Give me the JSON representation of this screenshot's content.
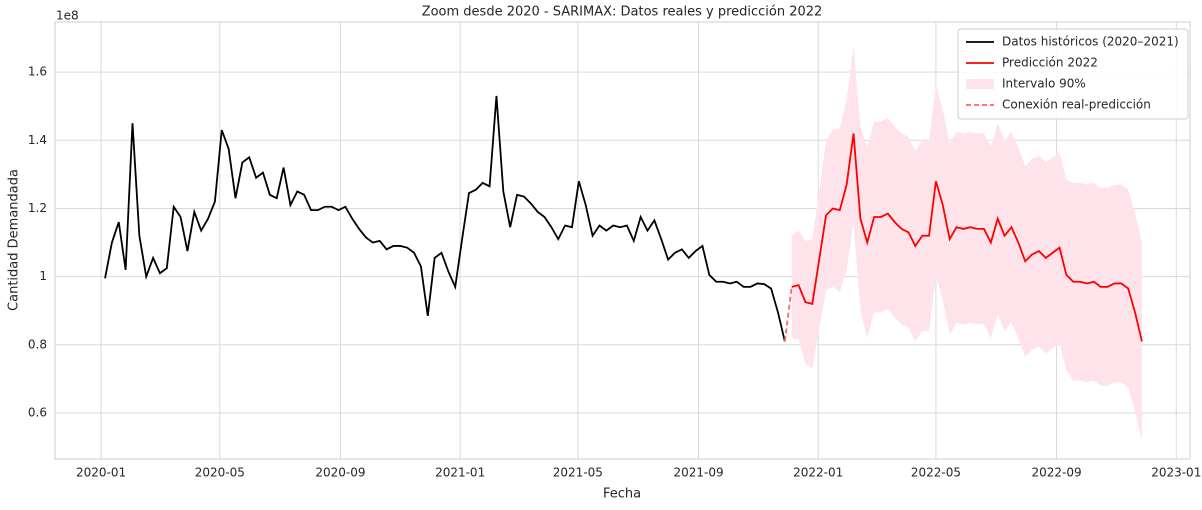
{
  "chart_data": {
    "type": "line",
    "title": "Zoom desde 2020 - SARIMAX: Datos reales y predicción 2022",
    "x_label": "Fecha",
    "y_label": "Cantidad Demandada",
    "y_offset_label": "1e8",
    "xlim": [
      "2019-11-15",
      "2023-01-15"
    ],
    "xticks": [
      {
        "value": "2020-01-01",
        "label": "2020-01"
      },
      {
        "value": "2020-05-01",
        "label": "2020-05"
      },
      {
        "value": "2020-09-01",
        "label": "2020-09"
      },
      {
        "value": "2021-01-01",
        "label": "2021-01"
      },
      {
        "value": "2021-05-01",
        "label": "2021-05"
      },
      {
        "value": "2021-09-01",
        "label": "2021-09"
      },
      {
        "value": "2022-01-01",
        "label": "2022-01"
      },
      {
        "value": "2022-05-01",
        "label": "2022-05"
      },
      {
        "value": "2022-09-01",
        "label": "2022-09"
      },
      {
        "value": "2023-01-01",
        "label": "2023-01"
      }
    ],
    "ylim": [
      0.465,
      1.747
    ],
    "yticks": [
      0.6,
      0.8,
      1.0,
      1.2,
      1.4,
      1.6
    ],
    "grid": true,
    "legend": "upper right",
    "series": [
      {
        "name": "Datos históricos (2020–2021)",
        "color": "#000000",
        "kind": "line",
        "x": [
          "2020-01-05",
          "2020-01-12",
          "2020-01-19",
          "2020-01-26",
          "2020-02-02",
          "2020-02-09",
          "2020-02-16",
          "2020-02-23",
          "2020-03-01",
          "2020-03-08",
          "2020-03-15",
          "2020-03-22",
          "2020-03-29",
          "2020-04-05",
          "2020-04-12",
          "2020-04-19",
          "2020-04-26",
          "2020-05-03",
          "2020-05-10",
          "2020-05-17",
          "2020-05-24",
          "2020-05-31",
          "2020-06-07",
          "2020-06-14",
          "2020-06-21",
          "2020-06-28",
          "2020-07-05",
          "2020-07-12",
          "2020-07-19",
          "2020-07-26",
          "2020-08-02",
          "2020-08-09",
          "2020-08-16",
          "2020-08-23",
          "2020-08-30",
          "2020-09-06",
          "2020-09-13",
          "2020-09-20",
          "2020-09-27",
          "2020-10-04",
          "2020-10-11",
          "2020-10-18",
          "2020-10-25",
          "2020-11-01",
          "2020-11-08",
          "2020-11-15",
          "2020-11-22",
          "2020-11-29",
          "2020-12-06",
          "2020-12-13",
          "2020-12-20",
          "2020-12-27",
          "2021-01-03",
          "2021-01-10",
          "2021-01-17",
          "2021-01-24",
          "2021-01-31",
          "2021-02-07",
          "2021-02-14",
          "2021-02-21",
          "2021-02-28",
          "2021-03-07",
          "2021-03-14",
          "2021-03-21",
          "2021-03-28",
          "2021-04-04",
          "2021-04-11",
          "2021-04-18",
          "2021-04-25",
          "2021-05-02",
          "2021-05-09",
          "2021-05-16",
          "2021-05-23",
          "2021-05-30",
          "2021-06-06",
          "2021-06-13",
          "2021-06-20",
          "2021-06-27",
          "2021-07-04",
          "2021-07-11",
          "2021-07-18",
          "2021-07-25",
          "2021-08-01",
          "2021-08-08",
          "2021-08-15",
          "2021-08-22",
          "2021-08-29",
          "2021-09-05",
          "2021-09-12",
          "2021-09-19",
          "2021-09-26",
          "2021-10-03",
          "2021-10-10",
          "2021-10-17",
          "2021-10-24",
          "2021-10-31",
          "2021-11-07",
          "2021-11-14",
          "2021-11-21",
          "2021-11-28"
        ],
        "values": [
          0.995,
          1.1,
          1.16,
          1.02,
          1.45,
          1.12,
          1.0,
          1.055,
          1.01,
          1.025,
          1.205,
          1.175,
          1.075,
          1.19,
          1.135,
          1.17,
          1.22,
          1.43,
          1.375,
          1.23,
          1.335,
          1.35,
          1.29,
          1.305,
          1.24,
          1.23,
          1.32,
          1.21,
          1.25,
          1.24,
          1.195,
          1.195,
          1.205,
          1.205,
          1.195,
          1.205,
          1.17,
          1.14,
          1.115,
          1.1,
          1.105,
          1.08,
          1.09,
          1.09,
          1.085,
          1.07,
          1.03,
          0.885,
          1.055,
          1.07,
          1.015,
          0.97,
          1.11,
          1.245,
          1.255,
          1.275,
          1.265,
          1.53,
          1.25,
          1.145,
          1.24,
          1.235,
          1.215,
          1.19,
          1.175,
          1.145,
          1.11,
          1.15,
          1.145,
          1.28,
          1.21,
          1.12,
          1.15,
          1.135,
          1.15,
          1.145,
          1.15,
          1.105,
          1.175,
          1.135,
          1.165,
          1.11,
          1.05,
          1.07,
          1.08,
          1.055,
          1.075,
          1.09,
          1.005,
          0.985,
          0.985,
          0.98,
          0.985,
          0.97,
          0.97,
          0.98,
          0.978,
          0.965,
          0.895,
          0.81
        ]
      },
      {
        "name": "Predicción 2022",
        "color": "#ff0000",
        "kind": "line",
        "x": [
          "2021-12-05",
          "2021-12-12",
          "2021-12-19",
          "2021-12-26",
          "2022-01-02",
          "2022-01-09",
          "2022-01-16",
          "2022-01-23",
          "2022-01-30",
          "2022-02-06",
          "2022-02-13",
          "2022-02-20",
          "2022-02-27",
          "2022-03-06",
          "2022-03-13",
          "2022-03-20",
          "2022-03-27",
          "2022-04-03",
          "2022-04-10",
          "2022-04-17",
          "2022-04-24",
          "2022-05-01",
          "2022-05-08",
          "2022-05-15",
          "2022-05-22",
          "2022-05-29",
          "2022-06-05",
          "2022-06-12",
          "2022-06-19",
          "2022-06-26",
          "2022-07-03",
          "2022-07-10",
          "2022-07-17",
          "2022-07-24",
          "2022-07-31",
          "2022-08-07",
          "2022-08-14",
          "2022-08-21",
          "2022-08-28",
          "2022-09-04",
          "2022-09-11",
          "2022-09-18",
          "2022-09-25",
          "2022-10-02",
          "2022-10-09",
          "2022-10-16",
          "2022-10-23",
          "2022-10-30",
          "2022-11-06",
          "2022-11-13",
          "2022-11-20",
          "2022-11-27"
        ],
        "values": [
          0.97,
          0.975,
          0.925,
          0.92,
          1.05,
          1.18,
          1.2,
          1.195,
          1.27,
          1.42,
          1.17,
          1.1,
          1.175,
          1.175,
          1.185,
          1.16,
          1.14,
          1.13,
          1.09,
          1.12,
          1.12,
          1.28,
          1.21,
          1.11,
          1.145,
          1.14,
          1.145,
          1.14,
          1.14,
          1.1,
          1.17,
          1.12,
          1.145,
          1.1,
          1.045,
          1.065,
          1.075,
          1.055,
          1.07,
          1.085,
          1.005,
          0.985,
          0.985,
          0.98,
          0.985,
          0.97,
          0.97,
          0.98,
          0.98,
          0.965,
          0.895,
          0.81
        ]
      },
      {
        "name": "Intervalo 90%",
        "color": "#ffe3ea",
        "kind": "band",
        "x": [
          "2021-12-05",
          "2021-12-12",
          "2021-12-19",
          "2021-12-26",
          "2022-01-02",
          "2022-01-09",
          "2022-01-16",
          "2022-01-23",
          "2022-01-30",
          "2022-02-06",
          "2022-02-13",
          "2022-02-20",
          "2022-02-27",
          "2022-03-06",
          "2022-03-13",
          "2022-03-20",
          "2022-03-27",
          "2022-04-03",
          "2022-04-10",
          "2022-04-17",
          "2022-04-24",
          "2022-05-01",
          "2022-05-08",
          "2022-05-15",
          "2022-05-22",
          "2022-05-29",
          "2022-06-05",
          "2022-06-12",
          "2022-06-19",
          "2022-06-26",
          "2022-07-03",
          "2022-07-10",
          "2022-07-17",
          "2022-07-24",
          "2022-07-31",
          "2022-08-07",
          "2022-08-14",
          "2022-08-21",
          "2022-08-28",
          "2022-09-04",
          "2022-09-11",
          "2022-09-18",
          "2022-09-25",
          "2022-10-02",
          "2022-10-09",
          "2022-10-16",
          "2022-10-23",
          "2022-10-30",
          "2022-11-06",
          "2022-11-13",
          "2022-11-20",
          "2022-11-27"
        ],
        "lower": [
          0.82,
          0.815,
          0.745,
          0.73,
          0.85,
          0.96,
          0.97,
          0.955,
          1.02,
          1.16,
          0.9,
          0.82,
          0.895,
          0.895,
          0.905,
          0.88,
          0.86,
          0.85,
          0.81,
          0.84,
          0.84,
          1.0,
          0.93,
          0.83,
          0.865,
          0.86,
          0.865,
          0.86,
          0.86,
          0.82,
          0.89,
          0.84,
          0.865,
          0.82,
          0.765,
          0.785,
          0.795,
          0.775,
          0.79,
          0.805,
          0.725,
          0.695,
          0.695,
          0.69,
          0.695,
          0.68,
          0.68,
          0.69,
          0.69,
          0.675,
          0.605,
          0.52
        ],
        "upper": [
          1.12,
          1.135,
          1.105,
          1.11,
          1.25,
          1.4,
          1.43,
          1.435,
          1.52,
          1.68,
          1.44,
          1.38,
          1.455,
          1.455,
          1.465,
          1.44,
          1.42,
          1.41,
          1.37,
          1.4,
          1.4,
          1.56,
          1.49,
          1.39,
          1.425,
          1.42,
          1.425,
          1.42,
          1.42,
          1.38,
          1.45,
          1.4,
          1.425,
          1.38,
          1.325,
          1.345,
          1.355,
          1.335,
          1.35,
          1.365,
          1.285,
          1.275,
          1.275,
          1.27,
          1.275,
          1.26,
          1.26,
          1.27,
          1.27,
          1.255,
          1.185,
          1.1
        ]
      },
      {
        "name": "Conexión real-predicción",
        "color": "#ff6666",
        "kind": "line",
        "linestyle": "dashed",
        "x": [
          "2021-11-28",
          "2021-12-05"
        ],
        "values": [
          0.81,
          0.97
        ]
      }
    ]
  }
}
